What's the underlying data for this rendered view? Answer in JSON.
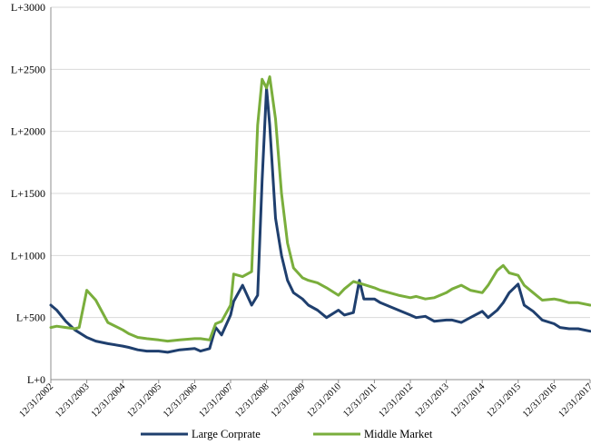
{
  "chart_data": {
    "type": "line",
    "title": "",
    "xlabel": "",
    "ylabel": "",
    "ylim": [
      0,
      3000
    ],
    "ytick_values": [
      0,
      500,
      1000,
      1500,
      2000,
      2500,
      3000
    ],
    "ytick_labels": [
      "L+0",
      "L+500",
      "L+1000",
      "L+1500",
      "L+2000",
      "L+2500",
      "L+3000"
    ],
    "xlim": [
      "2002-12-31",
      "2017-12-31"
    ],
    "xtick_labels": [
      "12/31/2002",
      "12/31/2003",
      "12/31/2004",
      "12/31/2005",
      "12/31/2006",
      "12/31/2007",
      "12/31/2008",
      "12/31/2009",
      "12/31/2010",
      "12/31/2011",
      "12/31/2012",
      "12/31/2013",
      "12/31/2014",
      "12/31/2015",
      "12/31/2016",
      "12/31/2017"
    ],
    "grid": true,
    "legend_position": "bottom",
    "series": [
      {
        "name": "Large Corprate",
        "color": "#1f3f6e",
        "x": [
          "2002-12-31",
          "2003-03-01",
          "2003-06-01",
          "2003-09-01",
          "2003-12-31",
          "2004-04-01",
          "2004-08-01",
          "2004-12-31",
          "2005-03-01",
          "2005-06-01",
          "2005-09-01",
          "2005-12-31",
          "2006-04-01",
          "2006-08-01",
          "2006-12-31",
          "2007-03-01",
          "2007-06-01",
          "2007-08-01",
          "2007-10-01",
          "2007-12-31",
          "2008-02-01",
          "2008-05-01",
          "2008-08-01",
          "2008-10-01",
          "2008-11-15",
          "2008-12-31",
          "2009-02-01",
          "2009-04-01",
          "2009-06-01",
          "2009-08-01",
          "2009-10-01",
          "2009-12-31",
          "2010-03-01",
          "2010-06-01",
          "2010-09-01",
          "2010-12-31",
          "2011-03-01",
          "2011-06-01",
          "2011-08-01",
          "2011-09-15",
          "2011-12-31",
          "2012-03-01",
          "2012-06-01",
          "2012-09-01",
          "2012-12-31",
          "2013-03-01",
          "2013-06-01",
          "2013-09-01",
          "2013-12-31",
          "2014-03-01",
          "2014-06-01",
          "2014-09-01",
          "2014-12-31",
          "2015-03-01",
          "2015-06-01",
          "2015-08-01",
          "2015-10-01",
          "2015-12-31",
          "2016-03-01",
          "2016-06-01",
          "2016-09-01",
          "2016-12-31",
          "2017-03-01",
          "2017-06-01",
          "2017-09-01",
          "2017-12-31"
        ],
        "values": [
          600,
          560,
          470,
          400,
          340,
          310,
          290,
          270,
          260,
          240,
          230,
          230,
          220,
          240,
          250,
          230,
          250,
          420,
          360,
          520,
          630,
          760,
          600,
          680,
          1600,
          2350,
          2050,
          1300,
          1000,
          800,
          700,
          650,
          600,
          560,
          500,
          560,
          520,
          540,
          800,
          650,
          650,
          620,
          590,
          560,
          520,
          500,
          510,
          470,
          480,
          480,
          460,
          500,
          550,
          500,
          560,
          620,
          700,
          770,
          600,
          550,
          480,
          450,
          420,
          410,
          410,
          390
        ]
      },
      {
        "name": "Middle Market",
        "color": "#7aae3c",
        "x": [
          "2002-12-31",
          "2003-03-01",
          "2003-06-01",
          "2003-09-01",
          "2003-10-15",
          "2003-12-31",
          "2004-04-01",
          "2004-08-01",
          "2004-12-31",
          "2005-03-01",
          "2005-06-01",
          "2005-09-01",
          "2005-12-31",
          "2006-04-01",
          "2006-08-01",
          "2006-12-31",
          "2007-03-01",
          "2007-06-01",
          "2007-08-01",
          "2007-10-01",
          "2007-12-31",
          "2008-02-01",
          "2008-05-01",
          "2008-08-01",
          "2008-10-01",
          "2008-11-15",
          "2008-12-31",
          "2009-02-01",
          "2009-04-01",
          "2009-06-01",
          "2009-08-01",
          "2009-10-01",
          "2009-12-31",
          "2010-03-01",
          "2010-06-01",
          "2010-09-01",
          "2010-12-31",
          "2011-03-01",
          "2011-06-01",
          "2011-09-01",
          "2011-12-31",
          "2012-03-01",
          "2012-06-01",
          "2012-09-01",
          "2012-12-31",
          "2013-03-01",
          "2013-06-01",
          "2013-09-01",
          "2013-12-31",
          "2014-03-01",
          "2014-06-01",
          "2014-09-01",
          "2014-12-31",
          "2015-03-01",
          "2015-06-01",
          "2015-08-01",
          "2015-10-01",
          "2015-12-31",
          "2016-03-01",
          "2016-06-01",
          "2016-09-01",
          "2016-12-31",
          "2017-03-01",
          "2017-06-01",
          "2017-09-01",
          "2017-12-31"
        ],
        "values": [
          420,
          430,
          420,
          410,
          420,
          720,
          640,
          460,
          400,
          370,
          340,
          330,
          320,
          310,
          320,
          330,
          330,
          320,
          450,
          470,
          600,
          850,
          830,
          870,
          2050,
          2420,
          2350,
          2440,
          2100,
          1500,
          1100,
          900,
          820,
          800,
          780,
          740,
          680,
          730,
          790,
          770,
          740,
          720,
          700,
          680,
          660,
          670,
          650,
          660,
          700,
          730,
          760,
          720,
          700,
          760,
          880,
          920,
          860,
          840,
          760,
          700,
          640,
          650,
          640,
          620,
          620,
          600
        ]
      }
    ]
  }
}
